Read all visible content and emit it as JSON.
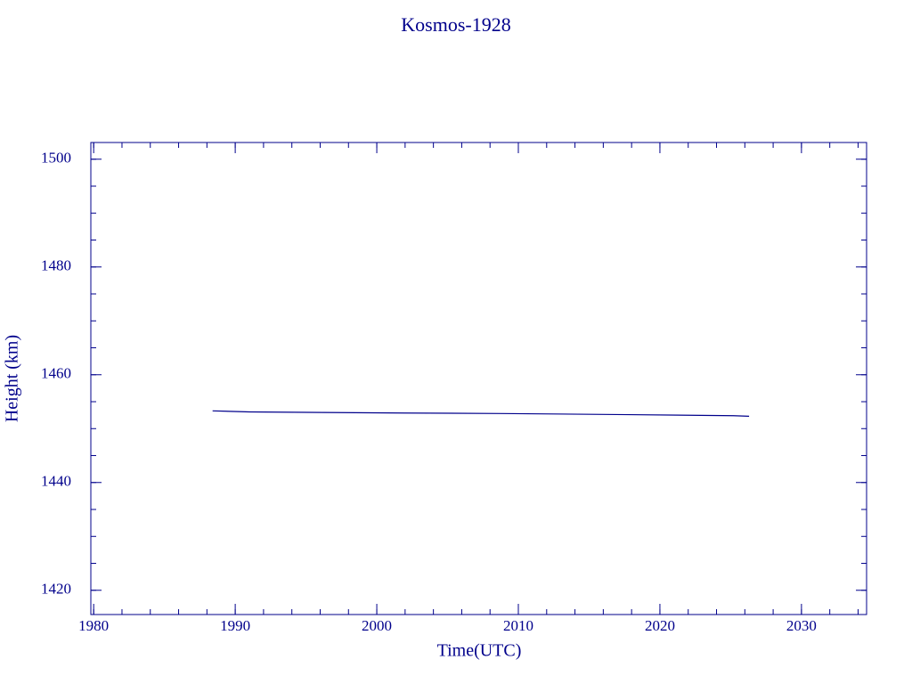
{
  "chart_data": {
    "type": "line",
    "title": "Kosmos-1928",
    "x_label": "Time(UTC)",
    "y_label": "Height (km)",
    "x": [
      1988.4,
      1991.0,
      1996.2,
      2001.9,
      2008.8,
      2017.8,
      2025.2,
      2026.3
    ],
    "series": [
      {
        "name": "Height",
        "color": "#00008b",
        "values": [
          1453.3,
          1453.1,
          1453.0,
          1452.9,
          1452.8,
          1452.6,
          1452.4,
          1452.3
        ]
      }
    ],
    "xlim": [
      1979.8,
      2034.6
    ],
    "xticks": [
      1980,
      1990,
      2000,
      2010,
      2020,
      2030
    ],
    "ylim": [
      1415.5,
      1503.1
    ],
    "yticks": [
      1420,
      1440,
      1460,
      1480,
      1500
    ],
    "color": "#00008b"
  }
}
